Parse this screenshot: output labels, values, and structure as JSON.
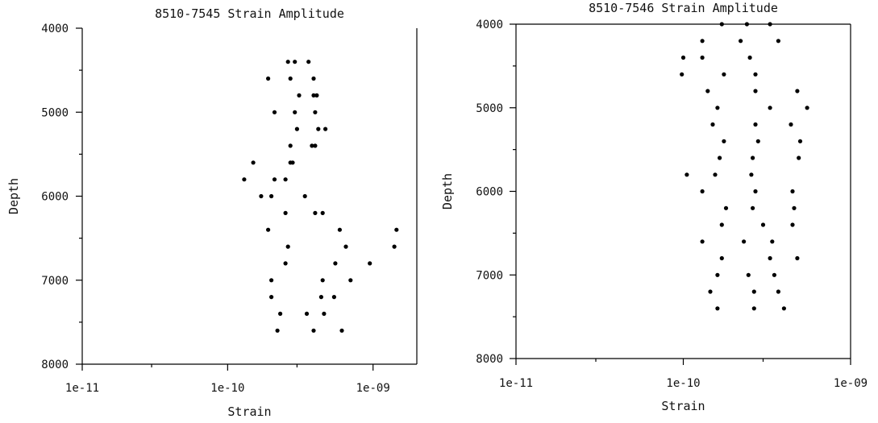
{
  "chart_data": [
    {
      "type": "scatter",
      "title": "8510-7545 Strain Amplitude",
      "xlabel": "Strain",
      "ylabel": "Depth",
      "x_scale": "log",
      "xlim": [
        1e-11,
        2e-09
      ],
      "ylim": [
        8000,
        4000
      ],
      "y_inverted": true,
      "grid": false,
      "legend": "none",
      "marker_color": "#000000",
      "xticks": [
        {
          "value": 1e-11,
          "label": "1e-11"
        },
        {
          "value": 1e-10,
          "label": "1e-10"
        },
        {
          "value": 1e-09,
          "label": "1e-09"
        }
      ],
      "yticks": [
        {
          "value": 4000,
          "label": "4000"
        },
        {
          "value": 5000,
          "label": "5000"
        },
        {
          "value": 6000,
          "label": "6000"
        },
        {
          "value": 7000,
          "label": "7000"
        },
        {
          "value": 8000,
          "label": "8000"
        }
      ],
      "points": [
        {
          "x": 2.6e-10,
          "y": 4400
        },
        {
          "x": 2.9e-10,
          "y": 4400
        },
        {
          "x": 3.6e-10,
          "y": 4400
        },
        {
          "x": 1.9e-10,
          "y": 4600
        },
        {
          "x": 2.7e-10,
          "y": 4600
        },
        {
          "x": 3.9e-10,
          "y": 4600
        },
        {
          "x": 3.1e-10,
          "y": 4800
        },
        {
          "x": 3.9e-10,
          "y": 4800
        },
        {
          "x": 4.1e-10,
          "y": 4800
        },
        {
          "x": 2.1e-10,
          "y": 5000
        },
        {
          "x": 2.9e-10,
          "y": 5000
        },
        {
          "x": 4e-10,
          "y": 5000
        },
        {
          "x": 3e-10,
          "y": 5200
        },
        {
          "x": 4.2e-10,
          "y": 5200
        },
        {
          "x": 4.7e-10,
          "y": 5200
        },
        {
          "x": 2.7e-10,
          "y": 5400
        },
        {
          "x": 3.8e-10,
          "y": 5400
        },
        {
          "x": 4e-10,
          "y": 5400
        },
        {
          "x": 1.5e-10,
          "y": 5600
        },
        {
          "x": 2.7e-10,
          "y": 5600
        },
        {
          "x": 2.8e-10,
          "y": 5600
        },
        {
          "x": 1.3e-10,
          "y": 5800
        },
        {
          "x": 2.1e-10,
          "y": 5800
        },
        {
          "x": 2.5e-10,
          "y": 5800
        },
        {
          "x": 1.7e-10,
          "y": 6000
        },
        {
          "x": 2e-10,
          "y": 6000
        },
        {
          "x": 3.4e-10,
          "y": 6000
        },
        {
          "x": 2.5e-10,
          "y": 6200
        },
        {
          "x": 4e-10,
          "y": 6200
        },
        {
          "x": 4.5e-10,
          "y": 6200
        },
        {
          "x": 1.9e-10,
          "y": 6400
        },
        {
          "x": 5.9e-10,
          "y": 6400
        },
        {
          "x": 1.45e-09,
          "y": 6400
        },
        {
          "x": 2.6e-10,
          "y": 6600
        },
        {
          "x": 6.5e-10,
          "y": 6600
        },
        {
          "x": 1.4e-09,
          "y": 6600
        },
        {
          "x": 2.5e-10,
          "y": 6800
        },
        {
          "x": 5.5e-10,
          "y": 6800
        },
        {
          "x": 9.5e-10,
          "y": 6800
        },
        {
          "x": 2e-10,
          "y": 7000
        },
        {
          "x": 4.5e-10,
          "y": 7000
        },
        {
          "x": 7e-10,
          "y": 7000
        },
        {
          "x": 2e-10,
          "y": 7200
        },
        {
          "x": 4.4e-10,
          "y": 7200
        },
        {
          "x": 5.4e-10,
          "y": 7200
        },
        {
          "x": 2.3e-10,
          "y": 7400
        },
        {
          "x": 3.5e-10,
          "y": 7400
        },
        {
          "x": 4.6e-10,
          "y": 7400
        },
        {
          "x": 2.2e-10,
          "y": 7600
        },
        {
          "x": 3.9e-10,
          "y": 7600
        },
        {
          "x": 6.1e-10,
          "y": 7600
        }
      ]
    },
    {
      "type": "scatter",
      "title": "8510-7546 Strain Amplitude",
      "xlabel": "Strain",
      "ylabel": "Depth",
      "x_scale": "log",
      "xlim": [
        1e-11,
        1e-09
      ],
      "ylim": [
        8000,
        4000
      ],
      "y_inverted": true,
      "grid": false,
      "legend": "none",
      "marker_color": "#000000",
      "xticks": [
        {
          "value": 1e-11,
          "label": "1e-11"
        },
        {
          "value": 1e-10,
          "label": "1e-10"
        },
        {
          "value": 1e-09,
          "label": "1e-09"
        }
      ],
      "yticks": [
        {
          "value": 4000,
          "label": "4000"
        },
        {
          "value": 5000,
          "label": "5000"
        },
        {
          "value": 6000,
          "label": "6000"
        },
        {
          "value": 7000,
          "label": "7000"
        },
        {
          "value": 8000,
          "label": "8000"
        }
      ],
      "points": [
        {
          "x": 1.7e-10,
          "y": 4000
        },
        {
          "x": 2.4e-10,
          "y": 4000
        },
        {
          "x": 3.3e-10,
          "y": 4000
        },
        {
          "x": 1.3e-10,
          "y": 4200
        },
        {
          "x": 2.2e-10,
          "y": 4200
        },
        {
          "x": 3.7e-10,
          "y": 4200
        },
        {
          "x": 1e-10,
          "y": 4400
        },
        {
          "x": 1.3e-10,
          "y": 4400
        },
        {
          "x": 2.5e-10,
          "y": 4400
        },
        {
          "x": 9.8e-11,
          "y": 4600
        },
        {
          "x": 1.75e-10,
          "y": 4600
        },
        {
          "x": 2.7e-10,
          "y": 4600
        },
        {
          "x": 1.4e-10,
          "y": 4800
        },
        {
          "x": 2.7e-10,
          "y": 4800
        },
        {
          "x": 4.8e-10,
          "y": 4800
        },
        {
          "x": 1.6e-10,
          "y": 5000
        },
        {
          "x": 3.3e-10,
          "y": 5000
        },
        {
          "x": 5.5e-10,
          "y": 5000
        },
        {
          "x": 1.5e-10,
          "y": 5200
        },
        {
          "x": 2.7e-10,
          "y": 5200
        },
        {
          "x": 4.4e-10,
          "y": 5200
        },
        {
          "x": 1.75e-10,
          "y": 5400
        },
        {
          "x": 2.8e-10,
          "y": 5400
        },
        {
          "x": 5e-10,
          "y": 5400
        },
        {
          "x": 1.65e-10,
          "y": 5600
        },
        {
          "x": 2.6e-10,
          "y": 5600
        },
        {
          "x": 4.9e-10,
          "y": 5600
        },
        {
          "x": 1.05e-10,
          "y": 5800
        },
        {
          "x": 1.55e-10,
          "y": 5800
        },
        {
          "x": 2.55e-10,
          "y": 5800
        },
        {
          "x": 1.3e-10,
          "y": 6000
        },
        {
          "x": 2.7e-10,
          "y": 6000
        },
        {
          "x": 4.5e-10,
          "y": 6000
        },
        {
          "x": 1.8e-10,
          "y": 6200
        },
        {
          "x": 2.6e-10,
          "y": 6200
        },
        {
          "x": 4.6e-10,
          "y": 6200
        },
        {
          "x": 1.7e-10,
          "y": 6400
        },
        {
          "x": 3e-10,
          "y": 6400
        },
        {
          "x": 4.5e-10,
          "y": 6400
        },
        {
          "x": 1.3e-10,
          "y": 6600
        },
        {
          "x": 2.3e-10,
          "y": 6600
        },
        {
          "x": 3.4e-10,
          "y": 6600
        },
        {
          "x": 1.7e-10,
          "y": 6800
        },
        {
          "x": 3.3e-10,
          "y": 6800
        },
        {
          "x": 4.8e-10,
          "y": 6800
        },
        {
          "x": 1.6e-10,
          "y": 7000
        },
        {
          "x": 2.45e-10,
          "y": 7000
        },
        {
          "x": 3.5e-10,
          "y": 7000
        },
        {
          "x": 1.45e-10,
          "y": 7200
        },
        {
          "x": 2.65e-10,
          "y": 7200
        },
        {
          "x": 3.7e-10,
          "y": 7200
        },
        {
          "x": 1.6e-10,
          "y": 7400
        },
        {
          "x": 2.65e-10,
          "y": 7400
        },
        {
          "x": 4e-10,
          "y": 7400
        }
      ]
    }
  ]
}
